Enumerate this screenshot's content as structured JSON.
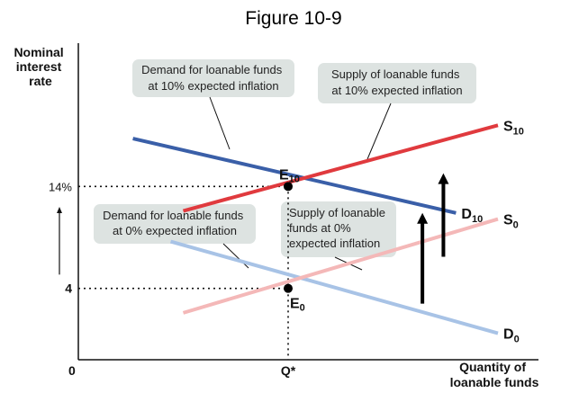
{
  "figure_title": "Figure 10-9",
  "chart_data": {
    "type": "line",
    "ylabel": [
      "Nominal",
      "interest",
      "rate"
    ],
    "xlabel": [
      "Quantity of",
      "loanable funds"
    ],
    "origin_label": "0",
    "y_ticks": [
      {
        "value": 14,
        "label": "14%"
      },
      {
        "value": 4,
        "label": "4"
      }
    ],
    "x_ticks": [
      {
        "value": 5,
        "label": "Q*"
      }
    ],
    "xlim": [
      0,
      10
    ],
    "ylim": [
      -3,
      27
    ],
    "series": [
      {
        "id": "D10",
        "label_main": "D",
        "label_sub": "10",
        "color": "#3a5fa8",
        "x": [
          1.3,
          9.0
        ],
        "y": [
          18.7,
          11.4
        ]
      },
      {
        "id": "S10",
        "label_main": "S",
        "label_sub": "10",
        "color": "#e03a3e",
        "x": [
          2.5,
          10.0
        ],
        "y": [
          11.6,
          20.0
        ]
      },
      {
        "id": "D0",
        "label_main": "D",
        "label_sub": "0",
        "color": "#a8c3e6",
        "x": [
          2.2,
          10.0
        ],
        "y": [
          8.6,
          -0.4
        ]
      },
      {
        "id": "S0",
        "label_main": "S",
        "label_sub": "0",
        "color": "#f4b8b8",
        "x": [
          2.5,
          10.0
        ],
        "y": [
          1.6,
          10.8
        ]
      }
    ],
    "equilibria": [
      {
        "id": "E10",
        "label_main": "E",
        "label_sub": "10",
        "x": 5,
        "y": 14
      },
      {
        "id": "E0",
        "label_main": "E",
        "label_sub": "0",
        "x": 5,
        "y": 4
      }
    ],
    "shift_arrows": [
      {
        "x": 8.2,
        "from": 2.5,
        "to": 11.4
      },
      {
        "x": 8.7,
        "from": 7.1,
        "to": 15.3
      }
    ],
    "interest_arrow": {
      "from": 5.0,
      "to": 12.0
    },
    "annotations": [
      {
        "id": "note-demand-10",
        "lines": [
          "Demand for loanable funds",
          "at 10% expected inflation"
        ],
        "points_to": "D10"
      },
      {
        "id": "note-supply-10",
        "lines": [
          "Supply of loanable funds",
          "at 10% expected inflation"
        ],
        "points_to": "S10"
      },
      {
        "id": "note-demand-0",
        "lines": [
          "Demand for loanable funds",
          "at 0% expected inflation"
        ],
        "points_to": "D0"
      },
      {
        "id": "note-supply-0",
        "lines": [
          "Supply of loanable",
          "funds at 0%",
          "expected inflation"
        ],
        "points_to": "S0"
      }
    ]
  }
}
